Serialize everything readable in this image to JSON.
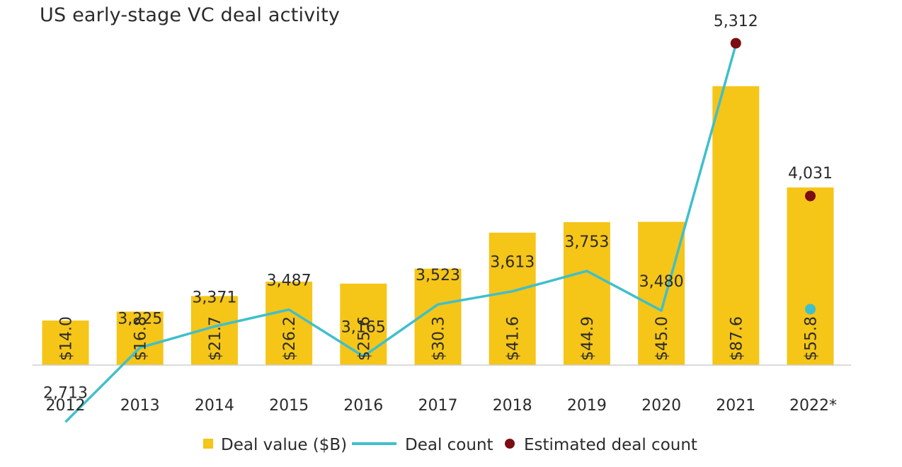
{
  "title": "US early-stage VC deal activity",
  "colors": {
    "bar": "#F5C518",
    "line": "#3FBFCC",
    "estimate": "#7A0E12",
    "axis": "#cfcfcf",
    "text": "#2b2b2b"
  },
  "chart_data": {
    "type": "bar",
    "title": "US early-stage VC deal activity",
    "categories": [
      "2012",
      "2013",
      "2014",
      "2015",
      "2016",
      "2017",
      "2018",
      "2019",
      "2020",
      "2021",
      "2022*"
    ],
    "series": [
      {
        "name": "Deal value ($B)",
        "type": "bar",
        "values": [
          14.0,
          16.8,
          21.7,
          26.2,
          25.6,
          30.3,
          41.6,
          44.9,
          45.0,
          87.6,
          55.8
        ],
        "labels": [
          "$14.0",
          "$16.8",
          "$21.7",
          "$26.2",
          "$25.6",
          "$30.3",
          "$41.6",
          "$44.9",
          "$45.0",
          "$87.6",
          "$55.8"
        ]
      },
      {
        "name": "Deal count",
        "type": "line",
        "values": [
          2713,
          3225,
          3371,
          3487,
          3165,
          3523,
          3613,
          3753,
          3480,
          5312,
          3490
        ],
        "labels": [
          "2,713",
          "3,225",
          "3,371",
          "3,487",
          "3,165",
          "3,523",
          "3,613",
          "3,753",
          "3,480",
          "5,312",
          ""
        ]
      },
      {
        "name": "Estimated deal count",
        "type": "scatter",
        "points": [
          {
            "x": "2021",
            "y": 5312
          },
          {
            "x": "2022*",
            "y": 4031,
            "label": "4,031"
          }
        ]
      }
    ],
    "bar_ylim": [
      0,
      90
    ],
    "count_ylim": [
      0,
      5500
    ],
    "grid": false,
    "legend": "bottom-center"
  },
  "legend": {
    "items": [
      {
        "label": "Deal value ($B)"
      },
      {
        "label": "Deal count"
      },
      {
        "label": "Estimated deal count"
      }
    ]
  }
}
